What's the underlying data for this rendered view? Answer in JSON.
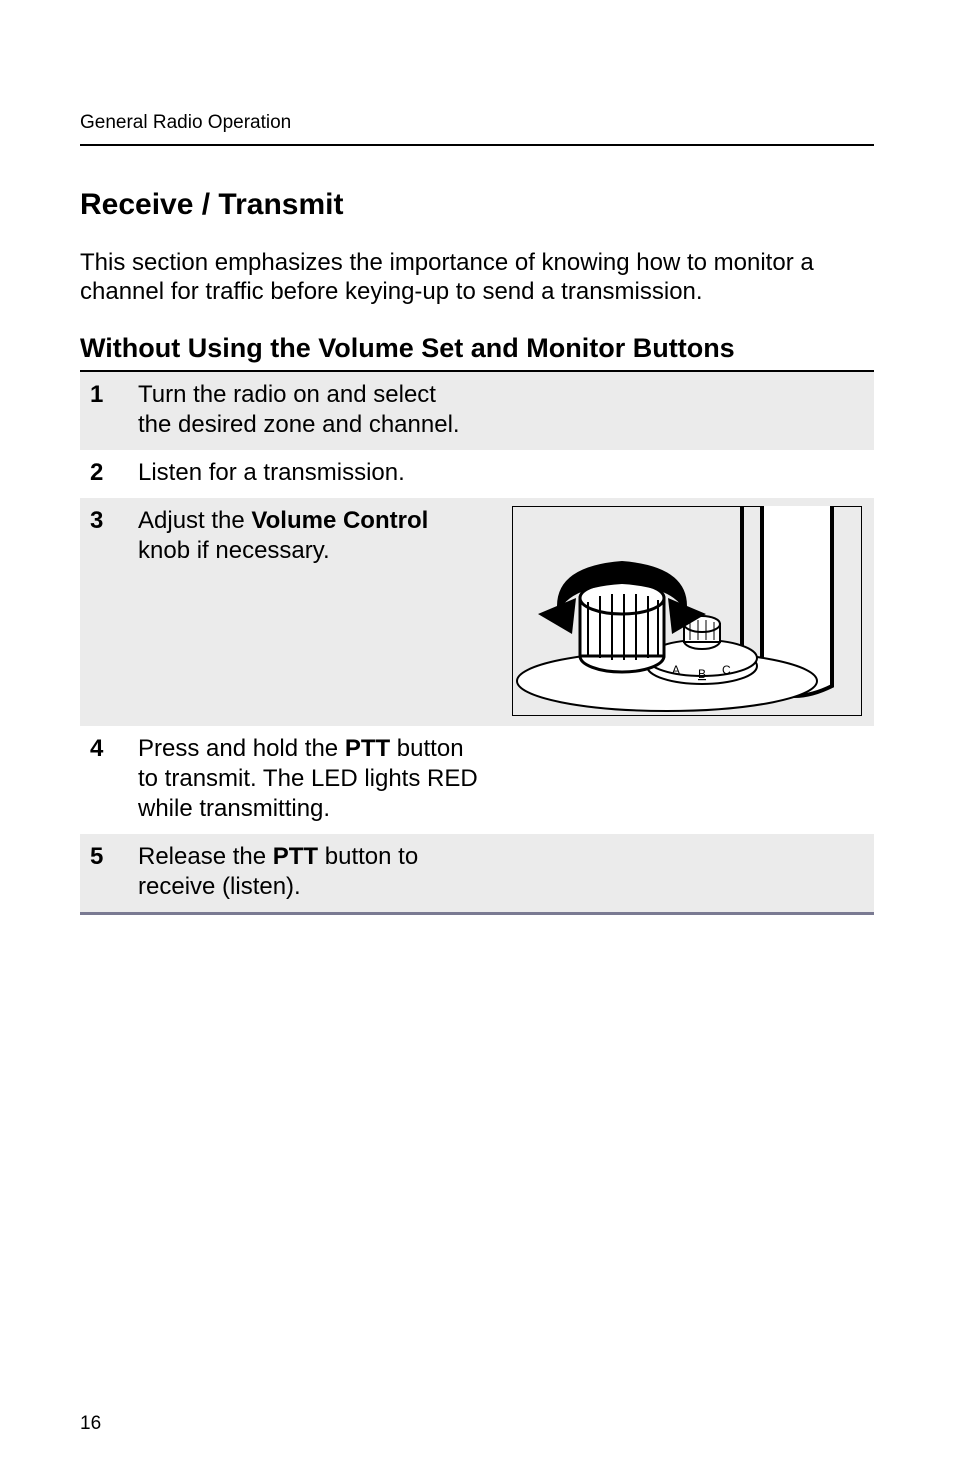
{
  "runningHead": "General Radio Operation",
  "section": {
    "title": "Receive / Transmit",
    "intro": "This section emphasizes the importance of knowing how to monitor a channel for traffic before keying-up to send a transmission.",
    "subTitle": "Without Using the Volume Set and Monitor Buttons"
  },
  "steps": [
    {
      "n": "1",
      "shaded": true,
      "parts": [
        {
          "t": "Turn the radio on and select the desired zone and channel."
        }
      ]
    },
    {
      "n": "2",
      "shaded": false,
      "parts": [
        {
          "t": "Listen for a transmission."
        }
      ]
    },
    {
      "n": "3",
      "shaded": true,
      "parts": [
        {
          "t": "Adjust the "
        },
        {
          "t": "Volume Control",
          "b": true
        },
        {
          "t": " knob if necessary."
        }
      ],
      "hasFigure": true
    },
    {
      "n": "4",
      "shaded": false,
      "parts": [
        {
          "t": "Press and hold the "
        },
        {
          "t": "PTT",
          "b": true
        },
        {
          "t": " button to transmit. The LED lights RED while transmitting."
        }
      ]
    },
    {
      "n": "5",
      "shaded": true,
      "parts": [
        {
          "t": "Release the "
        },
        {
          "t": "PTT",
          "b": true
        },
        {
          "t": " button to receive (listen)."
        }
      ]
    }
  ],
  "figure": {
    "labels": {
      "a": "A",
      "b": "B",
      "c": "C"
    }
  },
  "pageNumber": "16"
}
